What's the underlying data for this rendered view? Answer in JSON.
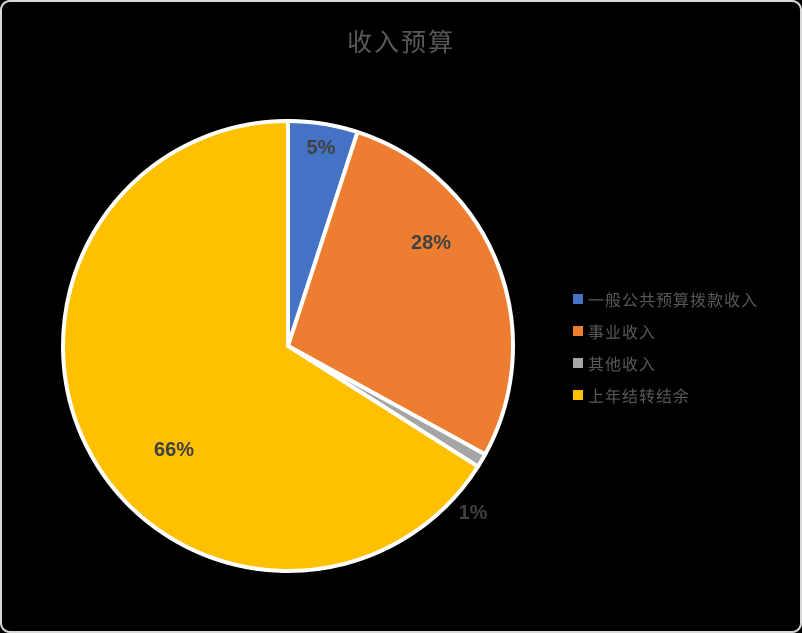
{
  "frame": {
    "background": "#000000",
    "border_color": "#D9D9D9"
  },
  "chart_data": {
    "type": "pie",
    "title": "收入预算",
    "categories": [
      "一般公共预算拨款收入",
      "事业收入",
      "其他收入",
      "上年结转结余"
    ],
    "values": [
      5,
      28,
      1,
      66
    ],
    "data_labels": [
      "5%",
      "28%",
      "1%",
      "66%"
    ],
    "colors": [
      "#4472C4",
      "#ED7D31",
      "#A5A5A5",
      "#FFC000"
    ],
    "start_angle_deg": 0,
    "direction": "clockwise",
    "legend_position": "right",
    "slice_border_color": "#FFFFFF",
    "title_color": "#595959",
    "legend_text_color": "#595959",
    "data_label_color": "#404040"
  }
}
